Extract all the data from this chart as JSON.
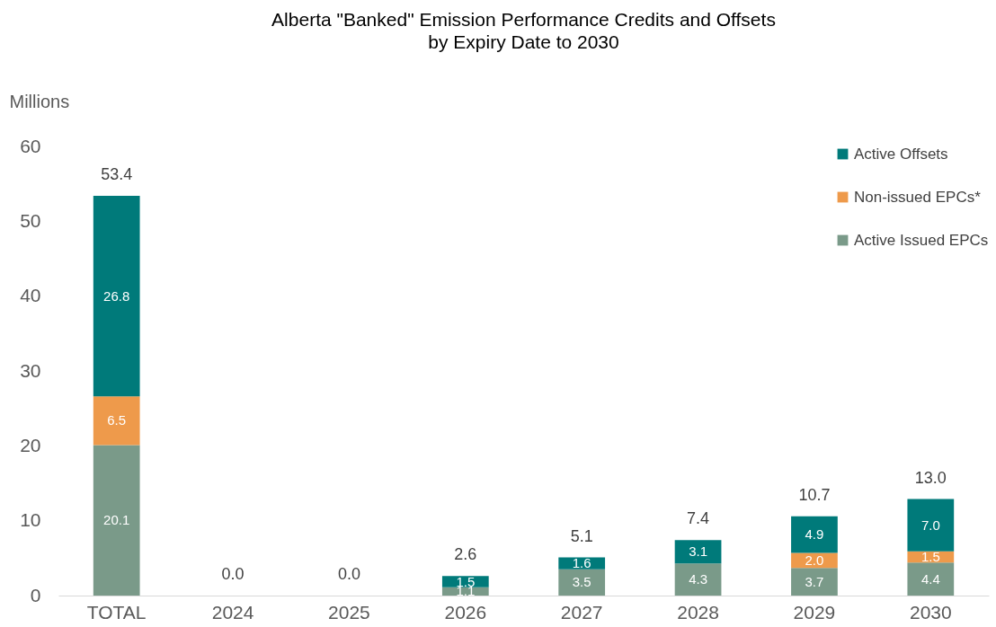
{
  "chart_data": {
    "type": "bar",
    "title": "Alberta \"Banked\" Emission Performance Credits and Offsets",
    "subtitle": "by Expiry Date to 2030",
    "ylabel": "Millions",
    "categories": [
      "TOTAL",
      "2024",
      "2025",
      "2026",
      "2027",
      "2028",
      "2029",
      "2030"
    ],
    "stacked": true,
    "series": [
      {
        "name": "Active Issued EPCs",
        "color": "#7a9a89",
        "values": [
          20.1,
          0,
          0,
          1.1,
          3.5,
          4.3,
          3.7,
          4.4
        ],
        "value_labels": [
          "20.1",
          null,
          null,
          "1.1",
          "3.5",
          "4.3",
          "3.7",
          "4.4"
        ]
      },
      {
        "name": "Non-issued EPCs*",
        "color": "#ee9a4b",
        "values": [
          6.5,
          0,
          0,
          0,
          0,
          0,
          2.0,
          1.5
        ],
        "value_labels": [
          "6.5",
          null,
          null,
          null,
          null,
          null,
          "2.0",
          "1.5"
        ]
      },
      {
        "name": "Active Offsets",
        "color": "#007a7a",
        "values": [
          26.8,
          0,
          0,
          1.5,
          1.6,
          3.1,
          4.9,
          7.0
        ],
        "value_labels": [
          "26.8",
          null,
          null,
          "1.5",
          "1.6",
          "3.1",
          "4.9",
          "7.0"
        ]
      }
    ],
    "totals": [
      "53.4",
      "0.0",
      "0.0",
      "2.6",
      "5.1",
      "7.4",
      "10.7",
      "13.0"
    ],
    "ylim": [
      0,
      60
    ],
    "yticks": [
      0,
      10,
      20,
      30,
      40,
      50,
      60
    ],
    "legend": "top right"
  }
}
